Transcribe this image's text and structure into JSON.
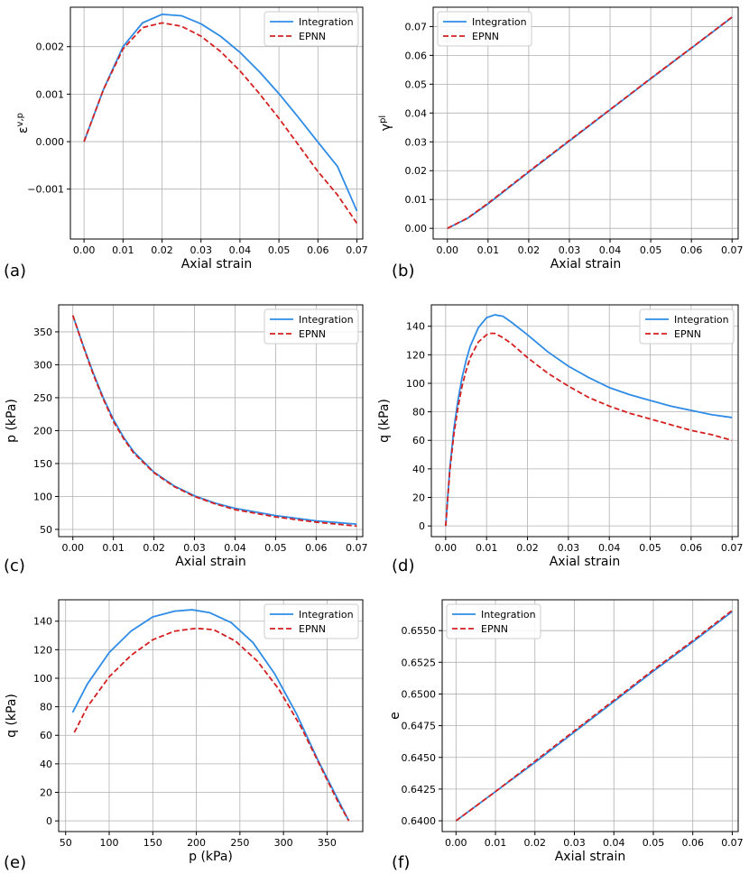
{
  "colors": {
    "integration": "#2f8ce6",
    "epnn": "#d42020",
    "grid": "#b0b0b0"
  },
  "chart_data": [
    {
      "panel": "(a)",
      "type": "line",
      "xlabel": "Axial strain",
      "ylabel": "ε^{v,p}",
      "xlim": [
        -0.0035,
        0.0715
      ],
      "ylim": [
        -0.00205,
        0.00283
      ],
      "xticks": [
        0.0,
        0.01,
        0.02,
        0.03,
        0.04,
        0.05,
        0.06,
        0.07
      ],
      "xtick_labels": [
        "0.00",
        "0.01",
        "0.02",
        "0.03",
        "0.04",
        "0.05",
        "0.06",
        "0.07"
      ],
      "yticks": [
        -0.001,
        0.0,
        0.001,
        0.002
      ],
      "ytick_labels": [
        "−0.001",
        "0.000",
        "0.001",
        "0.002"
      ],
      "grid": true,
      "legend": "top-right",
      "series": [
        {
          "name": "Integration",
          "x": [
            0,
            0.005,
            0.01,
            0.015,
            0.02,
            0.025,
            0.03,
            0.035,
            0.04,
            0.045,
            0.05,
            0.055,
            0.06,
            0.065,
            0.07
          ],
          "y": [
            0,
            0.0011,
            0.002,
            0.0025,
            0.00268,
            0.00265,
            0.00248,
            0.00222,
            0.00188,
            0.00147,
            0.00101,
            0.00051,
            -1e-05,
            -0.00052,
            -0.00146
          ]
        },
        {
          "name": "EPNN",
          "x": [
            0,
            0.005,
            0.01,
            0.015,
            0.02,
            0.025,
            0.03,
            0.035,
            0.04,
            0.045,
            0.05,
            0.055,
            0.06,
            0.065,
            0.07
          ],
          "y": [
            0,
            0.0011,
            0.00195,
            0.0024,
            0.0025,
            0.00243,
            0.00222,
            0.0019,
            0.00149,
            0.00101,
            0.00049,
            -7e-05,
            -0.00063,
            -0.00112,
            -0.00172
          ]
        }
      ]
    },
    {
      "panel": "(b)",
      "type": "line",
      "xlabel": "Axial strain",
      "ylabel": "γ^{pl}",
      "xlim": [
        -0.0035,
        0.0715
      ],
      "ylim": [
        -0.0037,
        0.0767
      ],
      "xticks": [
        0.0,
        0.01,
        0.02,
        0.03,
        0.04,
        0.05,
        0.06,
        0.07
      ],
      "xtick_labels": [
        "0.00",
        "0.01",
        "0.02",
        "0.03",
        "0.04",
        "0.05",
        "0.06",
        "0.07"
      ],
      "yticks": [
        0.0,
        0.01,
        0.02,
        0.03,
        0.04,
        0.05,
        0.06,
        0.07
      ],
      "ytick_labels": [
        "0.00",
        "0.01",
        "0.02",
        "0.03",
        "0.04",
        "0.05",
        "0.06",
        "0.07"
      ],
      "grid": true,
      "legend": "top-left",
      "series": [
        {
          "name": "Integration",
          "x": [
            0,
            0.005,
            0.01,
            0.015,
            0.02,
            0.03,
            0.04,
            0.05,
            0.06,
            0.07
          ],
          "y": [
            0,
            0.0035,
            0.0085,
            0.014,
            0.0195,
            0.0303,
            0.0411,
            0.0519,
            0.0625,
            0.0732
          ]
        },
        {
          "name": "EPNN",
          "x": [
            0,
            0.005,
            0.01,
            0.015,
            0.02,
            0.03,
            0.04,
            0.05,
            0.06,
            0.07
          ],
          "y": [
            0,
            0.0036,
            0.0087,
            0.0142,
            0.0197,
            0.0305,
            0.0412,
            0.052,
            0.0626,
            0.0733
          ]
        }
      ]
    },
    {
      "panel": "(c)",
      "type": "line",
      "xlabel": "Axial strain",
      "ylabel": "p (kPa)",
      "xlim": [
        -0.0035,
        0.0715
      ],
      "ylim": [
        39,
        391
      ],
      "xticks": [
        0.0,
        0.01,
        0.02,
        0.03,
        0.04,
        0.05,
        0.06,
        0.07
      ],
      "xtick_labels": [
        "0.00",
        "0.01",
        "0.02",
        "0.03",
        "0.04",
        "0.05",
        "0.06",
        "0.07"
      ],
      "yticks": [
        50,
        100,
        150,
        200,
        250,
        300,
        350
      ],
      "ytick_labels": [
        "50",
        "100",
        "150",
        "200",
        "250",
        "300",
        "350"
      ],
      "grid": true,
      "legend": "top-right",
      "series": [
        {
          "name": "Integration",
          "x": [
            0,
            0.0025,
            0.005,
            0.0075,
            0.01,
            0.0125,
            0.015,
            0.02,
            0.025,
            0.03,
            0.035,
            0.04,
            0.05,
            0.06,
            0.07
          ],
          "y": [
            375,
            330,
            288,
            250,
            217,
            190,
            168,
            137,
            116,
            101,
            90,
            82,
            71,
            63,
            58
          ]
        },
        {
          "name": "EPNN",
          "x": [
            0,
            0.0025,
            0.005,
            0.0075,
            0.01,
            0.0125,
            0.015,
            0.02,
            0.025,
            0.03,
            0.035,
            0.04,
            0.05,
            0.06,
            0.07
          ],
          "y": [
            375,
            329,
            286,
            248,
            214,
            188,
            166,
            136,
            115,
            100,
            89,
            80,
            69,
            61,
            55
          ]
        }
      ]
    },
    {
      "panel": "(d)",
      "type": "line",
      "xlabel": "Axial strain",
      "ylabel": "q (kPa)",
      "xlim": [
        -0.0035,
        0.0715
      ],
      "ylim": [
        -7.5,
        155
      ],
      "xticks": [
        0.0,
        0.01,
        0.02,
        0.03,
        0.04,
        0.05,
        0.06,
        0.07
      ],
      "xtick_labels": [
        "0.00",
        "0.01",
        "0.02",
        "0.03",
        "0.04",
        "0.05",
        "0.06",
        "0.07"
      ],
      "yticks": [
        0,
        20,
        40,
        60,
        80,
        100,
        120,
        140
      ],
      "ytick_labels": [
        "0",
        "20",
        "40",
        "60",
        "80",
        "100",
        "120",
        "140"
      ],
      "grid": true,
      "legend": "top-right",
      "series": [
        {
          "name": "Integration",
          "x": [
            0,
            0.001,
            0.002,
            0.003,
            0.004,
            0.005,
            0.006,
            0.008,
            0.01,
            0.012,
            0.014,
            0.016,
            0.02,
            0.025,
            0.03,
            0.035,
            0.04,
            0.045,
            0.05,
            0.055,
            0.06,
            0.065,
            0.07
          ],
          "y": [
            0,
            40,
            68,
            88,
            104,
            116,
            126,
            139,
            146,
            148,
            147,
            143,
            134,
            122,
            112,
            104,
            97,
            92,
            88,
            84,
            81,
            78,
            76
          ]
        },
        {
          "name": "EPNN",
          "x": [
            0,
            0.001,
            0.002,
            0.003,
            0.004,
            0.005,
            0.006,
            0.008,
            0.01,
            0.011,
            0.012,
            0.014,
            0.016,
            0.02,
            0.025,
            0.03,
            0.035,
            0.04,
            0.045,
            0.05,
            0.055,
            0.06,
            0.065,
            0.07
          ],
          "y": [
            0,
            38,
            64,
            83,
            98,
            109,
            118,
            129,
            134,
            135,
            135,
            132,
            128,
            118,
            107,
            98,
            90,
            84,
            79,
            75,
            71,
            67,
            64,
            60
          ]
        }
      ]
    },
    {
      "panel": "(e)",
      "type": "line",
      "xlabel": "p (kPa)",
      "ylabel": "q (kPa)",
      "xlim": [
        42,
        391
      ],
      "ylim": [
        -7.5,
        155
      ],
      "xticks": [
        50,
        100,
        150,
        200,
        250,
        300,
        350
      ],
      "xtick_labels": [
        "50",
        "100",
        "150",
        "200",
        "250",
        "300",
        "350"
      ],
      "yticks": [
        0,
        20,
        40,
        60,
        80,
        100,
        120,
        140
      ],
      "ytick_labels": [
        "0",
        "20",
        "40",
        "60",
        "80",
        "100",
        "120",
        "140"
      ],
      "grid": true,
      "legend": "top-right",
      "series": [
        {
          "name": "Integration",
          "x": [
            58,
            75,
            100,
            125,
            150,
            175,
            195,
            215,
            240,
            265,
            290,
            315,
            340,
            360,
            375
          ],
          "y": [
            76,
            96,
            118,
            133,
            143,
            147,
            148,
            146,
            139,
            125,
            103,
            75,
            42,
            18,
            0
          ]
        },
        {
          "name": "EPNN",
          "x": [
            60,
            75,
            100,
            125,
            150,
            175,
            200,
            220,
            245,
            270,
            295,
            320,
            345,
            362,
            375
          ],
          "y": [
            62,
            80,
            101,
            116,
            127,
            133,
            135,
            134,
            126,
            112,
            92,
            66,
            35,
            14,
            0
          ]
        }
      ]
    },
    {
      "panel": "(f)",
      "type": "line",
      "xlabel": "Axial strain",
      "ylabel": "e",
      "xlim": [
        -0.0035,
        0.0715
      ],
      "ylim": [
        0.63915,
        0.65743
      ],
      "xticks": [
        0.0,
        0.01,
        0.02,
        0.03,
        0.04,
        0.05,
        0.06,
        0.07
      ],
      "xtick_labels": [
        "0.00",
        "0.01",
        "0.02",
        "0.03",
        "0.04",
        "0.05",
        "0.06",
        "0.07"
      ],
      "yticks": [
        0.64,
        0.6425,
        0.645,
        0.6475,
        0.65,
        0.6525,
        0.655
      ],
      "ytick_labels": [
        "0.6400",
        "0.6425",
        "0.6450",
        "0.6475",
        "0.6500",
        "0.6525",
        "0.6550"
      ],
      "grid": true,
      "legend": "top-left",
      "series": [
        {
          "name": "Integration",
          "x": [
            0,
            0.01,
            0.02,
            0.03,
            0.04,
            0.05,
            0.06,
            0.07
          ],
          "y": [
            0.64,
            0.6423,
            0.6446,
            0.647,
            0.6494,
            0.6518,
            0.6541,
            0.6565
          ]
        },
        {
          "name": "EPNN",
          "x": [
            0,
            0.01,
            0.02,
            0.03,
            0.04,
            0.05,
            0.06,
            0.07
          ],
          "y": [
            0.64,
            0.6423,
            0.6447,
            0.6471,
            0.6495,
            0.6519,
            0.6542,
            0.6566
          ]
        }
      ]
    }
  ]
}
